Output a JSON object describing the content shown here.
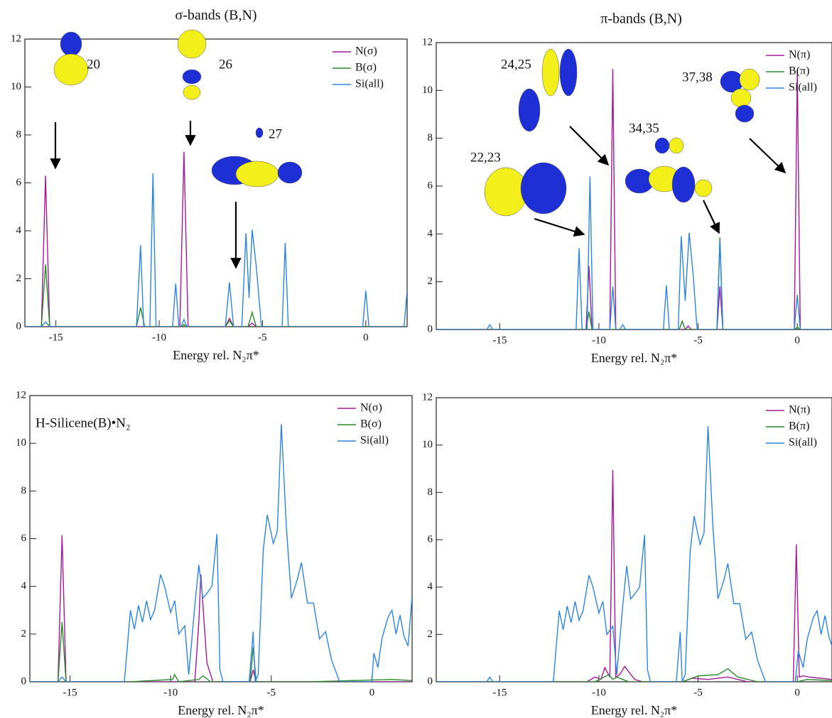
{
  "chart_data": [
    {
      "type": "line",
      "title": "σ-bands (B,N)",
      "xlabel": "Energy rel. N₂π*",
      "xlim": [
        -16.5,
        2
      ],
      "ylim": [
        0,
        12
      ],
      "xticks": [
        -15,
        -10,
        -5,
        0
      ],
      "yticks": [
        0,
        2,
        4,
        6,
        8,
        10,
        12
      ],
      "annotations": [
        "20",
        "26",
        "27"
      ],
      "series": [
        {
          "name": "N(σ)",
          "color": "#a3199a",
          "x": [
            -16.5,
            -15.7,
            -15.5,
            -15.3,
            -9.0,
            -8.8,
            -8.6,
            -6.8,
            -6.6,
            -6.4,
            -5.7,
            -5.5,
            -5.3,
            2
          ],
          "values": [
            0,
            0,
            6.3,
            0,
            0,
            7.3,
            0,
            0,
            0.35,
            0,
            0,
            0.15,
            0,
            0
          ]
        },
        {
          "name": "B(σ)",
          "color": "#2a8a2a",
          "x": [
            -16.5,
            -15.7,
            -15.5,
            -15.3,
            -11.1,
            -10.9,
            -10.7,
            -8.9,
            -8.8,
            -8.7,
            -6.8,
            -6.6,
            -6.4,
            -5.7,
            -5.5,
            -5.3,
            2
          ],
          "values": [
            0,
            0,
            2.6,
            0,
            0,
            0.8,
            0,
            0,
            0.1,
            0,
            0,
            0.25,
            0,
            0,
            0.6,
            0,
            0
          ]
        },
        {
          "name": "Si(all)",
          "color": "#2d84e0",
          "x": [
            -16.5,
            -15.7,
            -15.5,
            -15.3,
            -11.1,
            -10.9,
            -10.75,
            -10.45,
            -10.3,
            -10.15,
            -9.35,
            -9.2,
            -9.05,
            -8.95,
            -8.8,
            -8.65,
            -6.8,
            -6.6,
            -6.4,
            -6.0,
            -5.8,
            -5.65,
            -5.5,
            -5.3,
            -5.05,
            -4.05,
            -3.9,
            -3.75,
            -0.15,
            0,
            0.15,
            1.85,
            2
          ],
          "values": [
            0,
            0,
            0.2,
            0,
            0,
            3.4,
            0,
            0,
            6.4,
            0,
            0,
            1.8,
            0,
            0,
            0.3,
            0,
            0,
            1.85,
            0,
            0,
            3.9,
            1.2,
            4.05,
            2.5,
            0,
            0,
            3.5,
            0,
            0,
            1.5,
            0,
            0,
            1.5
          ]
        }
      ]
    },
    {
      "type": "line",
      "title": "π-bands (B,N)",
      "xlabel": "Energy rel. N₂π*",
      "xlim": [
        -18.2,
        1.75
      ],
      "ylim": [
        0,
        12
      ],
      "xticks": [
        -15,
        -10,
        -5,
        0
      ],
      "yticks": [
        0,
        2,
        4,
        6,
        8,
        10,
        12
      ],
      "annotations": [
        "24,25",
        "37,38",
        "34,35",
        "22,23"
      ],
      "series": [
        {
          "name": "N(π)",
          "color": "#a3199a",
          "x": [
            -18.2,
            -10.65,
            -10.5,
            -10.35,
            -9.45,
            -9.3,
            -9.15,
            -5.65,
            -5.5,
            -5.35,
            -4.05,
            -3.9,
            -3.75,
            -0.15,
            0,
            0.15,
            1.75
          ],
          "values": [
            0,
            0,
            2.65,
            0,
            0,
            10.9,
            0,
            0,
            0.15,
            0,
            0,
            1.8,
            0,
            0,
            10.85,
            0,
            0
          ]
        },
        {
          "name": "B(π)",
          "color": "#2a8a2a",
          "x": [
            -18.2,
            -10.65,
            -10.5,
            -10.35,
            -5.95,
            -5.8,
            -5.65,
            -4.05,
            -3.9,
            -3.75,
            -0.15,
            0,
            0.15,
            1.75
          ],
          "values": [
            0,
            0,
            0.75,
            0,
            0,
            0.35,
            0,
            0,
            3.85,
            0,
            0,
            0.1,
            0,
            0
          ]
        },
        {
          "name": "Si(all)",
          "color": "#2d84e0",
          "x": [
            -18.2,
            -15.65,
            -15.5,
            -15.35,
            -11.15,
            -11,
            -10.85,
            -10.6,
            -10.45,
            -10.3,
            -9.45,
            -9.3,
            -9.15,
            -8.95,
            -8.8,
            -8.65,
            -6.75,
            -6.6,
            -6.45,
            -6.0,
            -5.85,
            -5.65,
            -5.45,
            -5.25,
            -5.05,
            -4.05,
            -3.9,
            -3.75,
            -0.15,
            0,
            0.15,
            1.75
          ],
          "values": [
            0,
            0,
            0.2,
            0,
            0,
            3.4,
            0,
            0,
            6.4,
            0,
            0,
            1.8,
            0,
            0,
            0.2,
            0,
            0,
            1.85,
            0,
            0,
            3.9,
            1.2,
            4.05,
            2.3,
            0,
            0,
            3.7,
            0,
            0,
            1.45,
            0,
            0
          ]
        }
      ]
    },
    {
      "type": "line",
      "xlabel": "Energy rel. N₂π*",
      "xlim": [
        -17,
        2
      ],
      "ylim": [
        0,
        12
      ],
      "xticks": [
        -15,
        -10,
        -5,
        0
      ],
      "yticks": [
        0,
        2,
        4,
        6,
        8,
        10,
        12
      ],
      "annotations": [
        "H-Silicene(B)•N₂"
      ],
      "series": [
        {
          "name": "N(σ)",
          "color": "#a3199a",
          "x": [
            -17,
            -15.6,
            -15.4,
            -15.2,
            -8.8,
            -8.6,
            -8.5,
            -8.2,
            -7.9,
            -6.05,
            -5.9,
            -5.75,
            2
          ],
          "values": [
            0,
            0,
            6.15,
            0,
            0,
            2.5,
            4.5,
            0.8,
            0,
            0,
            0.5,
            0,
            0
          ]
        },
        {
          "name": "B(σ)",
          "color": "#2a8a2a",
          "x": [
            -17,
            -15.6,
            -15.4,
            -15.2,
            -12,
            -9.9,
            -9.8,
            -9.6,
            -8.6,
            -8.4,
            -8,
            -6.05,
            -5.9,
            -5.75,
            -3,
            1,
            2
          ],
          "values": [
            0,
            0,
            2.5,
            0,
            0,
            0.1,
            0.3,
            0,
            0.1,
            0.25,
            0,
            0,
            1.45,
            0,
            0,
            0.1,
            0.05
          ]
        },
        {
          "name": "Si(all)",
          "color": "#2d84e0",
          "x": [
            -17,
            -15.6,
            -15.4,
            -15.2,
            -12.3,
            -12,
            -11.8,
            -11.6,
            -11.4,
            -11.2,
            -11,
            -10.8,
            -10.5,
            -10.3,
            -10,
            -9.8,
            -9.6,
            -9.3,
            -9.1,
            -8.8,
            -8.6,
            -8.4,
            -8.2,
            -7.95,
            -7.7,
            -7.55,
            -7.4,
            -6.1,
            -5.9,
            -5.8,
            -5.65,
            -5.4,
            -5.2,
            -4.9,
            -4.7,
            -4.5,
            -4.25,
            -4.0,
            -3.7,
            -3.5,
            -3.2,
            -2.9,
            -2.6,
            -2.3,
            -2.0,
            -1.6,
            0,
            0.1,
            0.3,
            0.5,
            0.8,
            1.0,
            1.2,
            1.4,
            1.6,
            1.8,
            2.0
          ],
          "values": [
            0,
            0,
            0.2,
            0,
            0,
            3.0,
            2.2,
            3.2,
            2.5,
            3.4,
            2.6,
            3.0,
            4.5,
            4.0,
            2.9,
            3.4,
            2.0,
            2.35,
            0.3,
            3.2,
            4.9,
            3.5,
            3.7,
            4.0,
            6.2,
            0.5,
            0,
            0,
            2.1,
            0,
            0.3,
            5.5,
            7.0,
            5.8,
            6.3,
            10.8,
            6.5,
            3.5,
            4.3,
            5.0,
            3.3,
            3.3,
            1.8,
            2.1,
            0.9,
            0,
            0,
            1.2,
            0.6,
            1.8,
            2.7,
            3.0,
            2.0,
            2.8,
            1.9,
            1.5,
            3.6
          ]
        }
      ]
    },
    {
      "type": "line",
      "xlabel": "Energy rel. N₂π*",
      "xlim": [
        -18.2,
        1.75
      ],
      "ylim": [
        0,
        12
      ],
      "xticks": [
        -15,
        -10,
        -5,
        0
      ],
      "yticks": [
        0,
        2,
        4,
        6,
        8,
        10,
        12
      ],
      "series": [
        {
          "name": "N(π)",
          "color": "#a3199a",
          "x": [
            -18.2,
            -10.6,
            -10.2,
            -9.9,
            -9.7,
            -9.45,
            -9.3,
            -9.15,
            -8.95,
            -8.7,
            -8.2,
            -7.8,
            -5.8,
            -5.3,
            -4.5,
            -3.5,
            -2.5,
            -0.2,
            -0.05,
            0.1,
            0.3,
            0.6,
            1.75
          ],
          "values": [
            0,
            0,
            0.2,
            0.1,
            0.6,
            0.2,
            8.95,
            0.2,
            0.3,
            0.65,
            0.1,
            0,
            0,
            0.15,
            0.1,
            0.2,
            0,
            0,
            5.8,
            0.2,
            0.25,
            0.2,
            0.1
          ]
        },
        {
          "name": "B(π)",
          "color": "#2a8a2a",
          "x": [
            -18.2,
            -10.2,
            -9.5,
            -9.3,
            -9.1,
            -8.5,
            -5.8,
            -5,
            -4,
            -3.5,
            -3,
            -2,
            0,
            0.5,
            1.75
          ],
          "values": [
            0,
            0,
            0.3,
            0.1,
            0.2,
            0,
            0,
            0.25,
            0.3,
            0.55,
            0.2,
            0,
            0,
            0.1,
            0.05
          ]
        },
        {
          "name": "Si(all)",
          "color": "#2d84e0",
          "x": [
            -18.2,
            -15.65,
            -15.5,
            -15.35,
            -12.3,
            -12,
            -11.8,
            -11.6,
            -11.4,
            -11.2,
            -11,
            -10.8,
            -10.5,
            -10.3,
            -10,
            -9.8,
            -9.6,
            -9.3,
            -9.1,
            -8.8,
            -8.6,
            -8.4,
            -8.2,
            -7.95,
            -7.7,
            -7.55,
            -7.4,
            -6.1,
            -5.9,
            -5.8,
            -5.65,
            -5.4,
            -5.2,
            -4.9,
            -4.7,
            -4.5,
            -4.25,
            -4.0,
            -3.7,
            -3.5,
            -3.2,
            -2.9,
            -2.6,
            -2.3,
            -2.0,
            -1.6,
            -0.1,
            0.05,
            0.3,
            0.5,
            0.8,
            1.0,
            1.2,
            1.4,
            1.6,
            1.75
          ],
          "values": [
            0,
            0,
            0.2,
            0,
            0,
            3.0,
            2.2,
            3.2,
            2.5,
            3.4,
            2.6,
            3.0,
            4.5,
            4.0,
            2.9,
            3.4,
            2.0,
            2.35,
            0.3,
            3.2,
            4.9,
            3.5,
            3.7,
            4.0,
            6.2,
            0.5,
            0,
            0,
            2.1,
            0,
            0.3,
            5.5,
            7.0,
            5.8,
            6.3,
            10.8,
            6.5,
            3.5,
            4.3,
            5.0,
            3.3,
            3.3,
            1.8,
            2.1,
            0.9,
            0,
            0,
            1.3,
            0.6,
            1.8,
            2.7,
            3.0,
            2.0,
            2.8,
            1.9,
            1.5
          ]
        }
      ]
    }
  ]
}
